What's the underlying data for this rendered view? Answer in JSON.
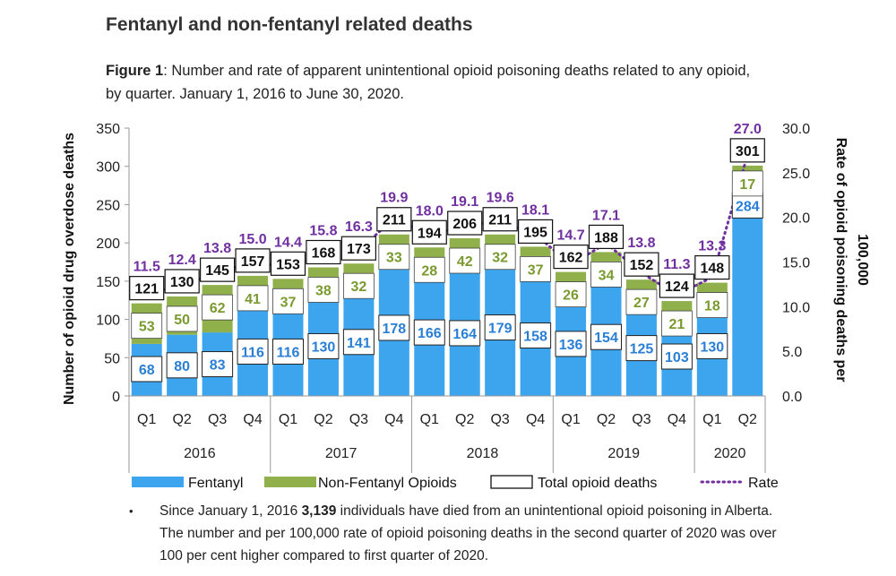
{
  "page": {
    "heading": "Fentanyl and non-fentanyl related deaths",
    "caption_label": "Figure 1",
    "caption_text": ": Number and rate of apparent unintentional opioid poisoning deaths related to any opioid, by quarter. January 1, 2016 to June 30, 2020."
  },
  "notes": {
    "bullet": "•",
    "pre": "Since January 1, 2016 ",
    "bold": "3,139",
    "post": " individuals have died from an unintentional opioid poisoning in Alberta. The number and per 100,000 rate of opioid poisoning deaths in the second quarter of 2020 was over 100 per cent higher compared to first quarter of 2020."
  },
  "chart_data": {
    "type": "bar",
    "stacked": true,
    "ylabel": "Number of opioid drug overdose deaths",
    "y2label": "Rate of opioid poisoning deaths per 100,000",
    "ylim": [
      0,
      350
    ],
    "y2lim": [
      0,
      30
    ],
    "yticks": [
      0,
      50,
      100,
      150,
      200,
      250,
      300,
      350
    ],
    "y2ticks": [
      "0.0",
      "5.0",
      "10.0",
      "15.0",
      "20.0",
      "25.0",
      "30.0"
    ],
    "categories": [
      "Q1",
      "Q2",
      "Q3",
      "Q4",
      "Q1",
      "Q2",
      "Q3",
      "Q4",
      "Q1",
      "Q2",
      "Q3",
      "Q4",
      "Q1",
      "Q2",
      "Q3",
      "Q4",
      "Q1",
      "Q2"
    ],
    "years": [
      {
        "label": "2016",
        "count": 4
      },
      {
        "label": "2017",
        "count": 4
      },
      {
        "label": "2018",
        "count": 4
      },
      {
        "label": "2019",
        "count": 4
      },
      {
        "label": "2020",
        "count": 2
      }
    ],
    "series": [
      {
        "name": "Fentanyl",
        "color": "#3DA4EE",
        "values": [
          68,
          80,
          83,
          116,
          116,
          130,
          141,
          178,
          166,
          164,
          179,
          158,
          136,
          154,
          125,
          103,
          130,
          284
        ]
      },
      {
        "name": "Non-Fentanyl Opioids",
        "color": "#8FB04B",
        "values": [
          53,
          50,
          62,
          41,
          37,
          38,
          32,
          33,
          28,
          42,
          32,
          37,
          26,
          34,
          27,
          21,
          18,
          17
        ]
      },
      {
        "name": "Total opioid deaths",
        "values": [
          121,
          130,
          145,
          157,
          153,
          168,
          173,
          211,
          194,
          206,
          211,
          195,
          162,
          188,
          152,
          124,
          148,
          301
        ]
      },
      {
        "name": "Rate",
        "color": "#7030A0",
        "values": [
          11.5,
          12.4,
          13.8,
          15.0,
          14.4,
          15.8,
          16.3,
          19.9,
          18.0,
          19.1,
          19.6,
          18.1,
          14.7,
          17.1,
          13.8,
          11.3,
          13.3,
          27.0
        ]
      }
    ],
    "rate_labels": [
      "11.5",
      "12.4",
      "13.8",
      "15.0",
      "14.4",
      "15.8",
      "16.3",
      "19.9",
      "18.0",
      "19.1",
      "19.6",
      "18.1",
      "14.7",
      "17.1",
      "13.8",
      "11.3",
      "13.3",
      "27.0"
    ],
    "legend": {
      "position": "bottom",
      "items": [
        {
          "label": "Fentanyl",
          "kind": "bar",
          "color": "#3DA4EE"
        },
        {
          "label": "Non-Fentanyl Opioids",
          "kind": "bar",
          "color": "#8FB04B"
        },
        {
          "label": "Total opioid deaths",
          "kind": "box"
        },
        {
          "label": "Rate",
          "kind": "dots",
          "color": "#7030A0"
        }
      ]
    },
    "grid": false
  }
}
